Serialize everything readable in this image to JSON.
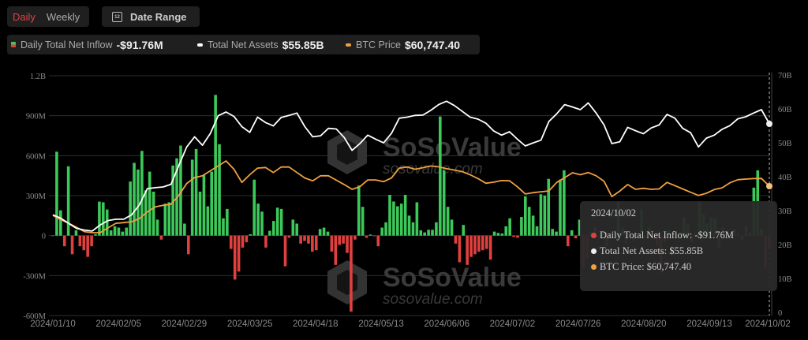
{
  "controls": {
    "daily_label": "Daily",
    "weekly_label": "Weekly",
    "date_range_label": "Date Range",
    "calendar_icon_text": "12"
  },
  "legend": [
    {
      "label": "Daily Total Net Inflow",
      "value": "-$91.76M",
      "color": "#3dc85a"
    },
    {
      "label": "Total Net Assets",
      "value": "$55.85B",
      "color": "#ffffff"
    },
    {
      "label": "BTC Price",
      "value": "$60,747.40",
      "color": "#f0a040"
    }
  ],
  "tooltip": {
    "date": "2024/10/02",
    "inflow": "Daily Total Net Inflow: -$91.76M",
    "assets": "Total Net Assets: $55.85B",
    "price": "BTC Price: $60,747.40"
  },
  "watermark": {
    "brand": "SoSoValue",
    "url": "sosovalue.com"
  },
  "chart_data": {
    "type": "bar+line",
    "colors": {
      "positive": "#3dc85a",
      "negative": "#e0413f",
      "assets": "#ffffff",
      "price": "#f0a040",
      "grid": "#2e2e2e"
    },
    "grid": true,
    "left_axis": {
      "ticks": [
        "1.2B",
        "900M",
        "600M",
        "300M",
        "0",
        "-300M",
        "-600M"
      ],
      "range_millions": [
        -600,
        1200
      ]
    },
    "right_axis": {
      "ticks": [
        "70B",
        "60B",
        "50B",
        "40B",
        "30B",
        "20B",
        "10B",
        "0"
      ],
      "range_billions": [
        0,
        70
      ]
    },
    "x_ticks": [
      "2024/01/10",
      "2024/02/05",
      "2024/02/29",
      "2024/03/25",
      "2024/04/18",
      "2024/05/13",
      "2024/06/06",
      "2024/07/02",
      "2024/07/26",
      "2024/08/20",
      "2024/09/13",
      "2024/10/02"
    ],
    "series": [
      {
        "name": "Daily Total Net Inflow",
        "kind": "bar",
        "unit": "M USD",
        "values": [
          0,
          630,
          190,
          -80,
          520,
          -140,
          40,
          -80,
          -110,
          -160,
          -80,
          10,
          255,
          250,
          196,
          40,
          70,
          60,
          30,
          60,
          406,
          546,
          496,
          636,
          340,
          480,
          330,
          120,
          -30,
          240,
          250,
          526,
          580,
          676,
          90,
          -140,
          570,
          650,
          330,
          454,
          220,
          480,
          1056,
          686,
          130,
          200,
          -100,
          -330,
          -270,
          -90,
          -50,
          10,
          420,
          240,
          180,
          -90,
          36,
          110,
          210,
          200,
          -230,
          -16,
          120,
          90,
          -60,
          -40,
          -60,
          -120,
          -110,
          50,
          60,
          30,
          -120,
          -220,
          -70,
          -60,
          -130,
          -570,
          -30,
          376,
          216,
          -16,
          8,
          -5,
          -80,
          60,
          100,
          306,
          256,
          220,
          240,
          306,
          150,
          100,
          250,
          40,
          24,
          44,
          44,
          100,
          894,
          490,
          216,
          120,
          -60,
          -200,
          80,
          -220,
          -160,
          -140,
          -120,
          -110,
          -100,
          -180,
          30,
          20,
          16,
          70,
          130,
          -10,
          -16,
          140,
          294,
          216,
          150,
          70,
          310,
          300,
          426,
          50,
          30,
          420,
          490,
          -80,
          40,
          -20,
          120,
          -240,
          -170,
          30,
          60,
          -10,
          20,
          -80,
          -5,
          40,
          250,
          60,
          -60,
          20,
          -40,
          10,
          200,
          -10,
          60,
          -30,
          -70,
          -280,
          -50,
          40,
          20,
          -10,
          30,
          140,
          90,
          -50,
          20,
          250,
          160,
          90,
          140,
          130,
          -100,
          60,
          30,
          -20,
          50,
          10,
          -30,
          70,
          20,
          360,
          490,
          50,
          -240,
          -92
        ]
      },
      {
        "name": "Total Net Assets",
        "kind": "line",
        "unit": "B USD",
        "values": [
          29,
          28,
          26.5,
          25,
          24.5,
          24.2,
          26,
          27.3,
          27.7,
          27.7,
          29,
          32,
          36.7,
          37,
          37.2,
          38,
          43.5,
          49,
          52,
          49.5,
          53,
          58.2,
          59.3,
          58,
          55,
          53.3,
          57.8,
          56.2,
          55.2,
          57.7,
          58.3,
          59,
          55,
          52,
          52.3,
          54.5,
          54.3,
          51.8,
          48,
          50,
          52.5,
          51.3,
          50.2,
          53,
          57.5,
          57.8,
          58.3,
          58.4,
          59.8,
          61.5,
          62.5,
          61.2,
          59.5,
          57.8,
          57.2,
          56,
          53.7,
          52.5,
          53.5,
          51.3,
          49.3,
          50.2,
          51,
          56.5,
          58.8,
          61.5,
          60.8,
          60,
          62,
          59,
          55.5,
          50,
          50.5,
          54.8,
          53.8,
          52.9,
          54.6,
          55.5,
          58.6,
          57.5,
          54.5,
          53.2,
          49,
          51.6,
          52.5,
          54.2,
          55.3,
          57.3,
          57.9,
          59,
          60,
          55.85
        ]
      },
      {
        "name": "BTC Price",
        "kind": "line",
        "unit": "K USD",
        "values": [
          47.4,
          45.5,
          43.8,
          42,
          40,
          39.5,
          39.5,
          41.7,
          43.8,
          44.1,
          44.5,
          46,
          49,
          51.3,
          52,
          52.5,
          56.5,
          62,
          64.7,
          65.5,
          67.8,
          70,
          72.3,
          68.5,
          62.5,
          66,
          69,
          69.3,
          67,
          69.5,
          69.5,
          67,
          64.5,
          63.2,
          65.5,
          65.5,
          63.5,
          61.5,
          59.3,
          60.5,
          63.6,
          63.6,
          62.8,
          64.5,
          69,
          69.5,
          68.5,
          69.2,
          70,
          69.6,
          68.8,
          68.1,
          67.4,
          66,
          64.2,
          62.1,
          62.6,
          63.3,
          63.2,
          60.5,
          57.2,
          57.8,
          58.2,
          58.6,
          62.5,
          64.6,
          66.9,
          66,
          67,
          65.5,
          63,
          56,
          58.5,
          61.5,
          59.3,
          59.8,
          59.3,
          59.5,
          62.5,
          61,
          59.5,
          58,
          56.5,
          57.5,
          59.2,
          60,
          62.3,
          63.7,
          64,
          64.2,
          64.3,
          60.75
        ]
      }
    ]
  }
}
